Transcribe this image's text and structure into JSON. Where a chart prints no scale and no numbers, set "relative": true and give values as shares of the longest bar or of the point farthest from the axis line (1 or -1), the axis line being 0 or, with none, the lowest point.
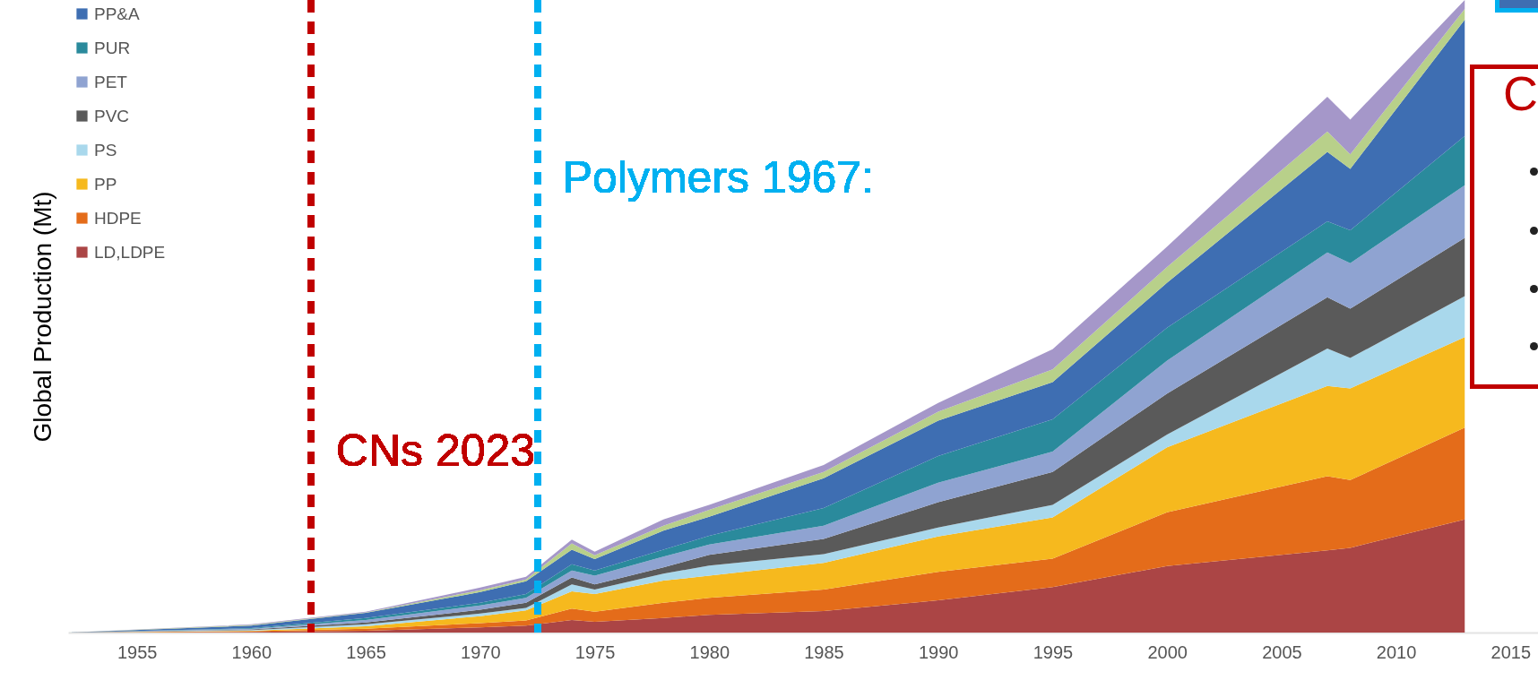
{
  "chart_data": {
    "type": "area",
    "stacked": true,
    "relative": true,
    "ylabel": "Global Production (Mt)",
    "x": [
      1952,
      1960,
      1965,
      1970,
      1972,
      1974,
      1975,
      1978,
      1980,
      1985,
      1990,
      1995,
      2000,
      2007,
      2008,
      2013
    ],
    "xlim": [
      1952,
      2016.2
    ],
    "xticks": [
      1955,
      1960,
      1965,
      1970,
      1975,
      1980,
      1985,
      1990,
      1995,
      2000,
      2005,
      2010,
      2015
    ],
    "legend": "top left",
    "series": [
      {
        "name": "LD,LDPE",
        "color": "#ab4545",
        "values": [
          0,
          0.001,
          0.003,
          0.008,
          0.011,
          0.02,
          0.017,
          0.023,
          0.028,
          0.034,
          0.051,
          0.072,
          0.105,
          0.13,
          0.134,
          0.179
        ]
      },
      {
        "name": "HDPE",
        "color": "#e46c1a",
        "values": [
          0,
          0.001,
          0.003,
          0.007,
          0.008,
          0.018,
          0.016,
          0.024,
          0.027,
          0.034,
          0.045,
          0.045,
          0.085,
          0.117,
          0.107,
          0.145
        ]
      },
      {
        "name": "PP",
        "color": "#f6b91e",
        "values": [
          0,
          0.001,
          0.004,
          0.011,
          0.016,
          0.027,
          0.028,
          0.035,
          0.035,
          0.042,
          0.056,
          0.065,
          0.103,
          0.143,
          0.145,
          0.143
        ]
      },
      {
        "name": "PS",
        "color": "#a9d8ec",
        "values": [
          0,
          0.001,
          0.003,
          0.004,
          0.004,
          0.011,
          0.007,
          0.011,
          0.016,
          0.014,
          0.014,
          0.02,
          0.02,
          0.059,
          0.048,
          0.065
        ]
      },
      {
        "name": "PVC",
        "color": "#5a5a5a",
        "values": [
          0,
          0.001,
          0.003,
          0.006,
          0.008,
          0.011,
          0.008,
          0.01,
          0.017,
          0.024,
          0.04,
          0.052,
          0.065,
          0.081,
          0.078,
          0.092
        ]
      },
      {
        "name": "PET",
        "color": "#8fa3d1",
        "values": [
          0,
          0.001,
          0.004,
          0.007,
          0.008,
          0.011,
          0.014,
          0.017,
          0.016,
          0.021,
          0.031,
          0.032,
          0.052,
          0.071,
          0.072,
          0.083
        ]
      },
      {
        "name": "PUR",
        "color": "#2a8a9c",
        "values": [
          0,
          0.001,
          0.003,
          0.004,
          0.006,
          0.01,
          0.008,
          0.011,
          0.014,
          0.028,
          0.042,
          0.051,
          0.052,
          0.049,
          0.052,
          0.078
        ]
      },
      {
        "name": "PP&A",
        "color": "#3e6eb2",
        "values": [
          0,
          0.004,
          0.008,
          0.017,
          0.02,
          0.023,
          0.018,
          0.03,
          0.03,
          0.047,
          0.056,
          0.059,
          0.071,
          0.11,
          0.097,
          0.184
        ]
      },
      {
        "color": "#b8d08a",
        "values": [
          0,
          0.001,
          0.001,
          0.003,
          0.003,
          0.01,
          0.006,
          0.008,
          0.011,
          0.01,
          0.014,
          0.02,
          0.025,
          0.032,
          0.023,
          0.017
        ]
      },
      {
        "color": "#a597c9",
        "values": [
          0,
          0.001,
          0.001,
          0.004,
          0.004,
          0.006,
          0.006,
          0.01,
          0.008,
          0.011,
          0.014,
          0.032,
          0.032,
          0.055,
          0.055,
          0.014
        ]
      }
    ],
    "ref_lines": [
      {
        "axis": "x",
        "value": 1962.6,
        "label": "CNs 2023",
        "color": "#c00000",
        "line_style": "dashed"
      },
      {
        "axis": "x",
        "value": 1972.5,
        "label": "Polymers 1967:",
        "color": "#00b0f0",
        "line_style": "dashed"
      }
    ],
    "annotations": [
      "C"
    ]
  }
}
